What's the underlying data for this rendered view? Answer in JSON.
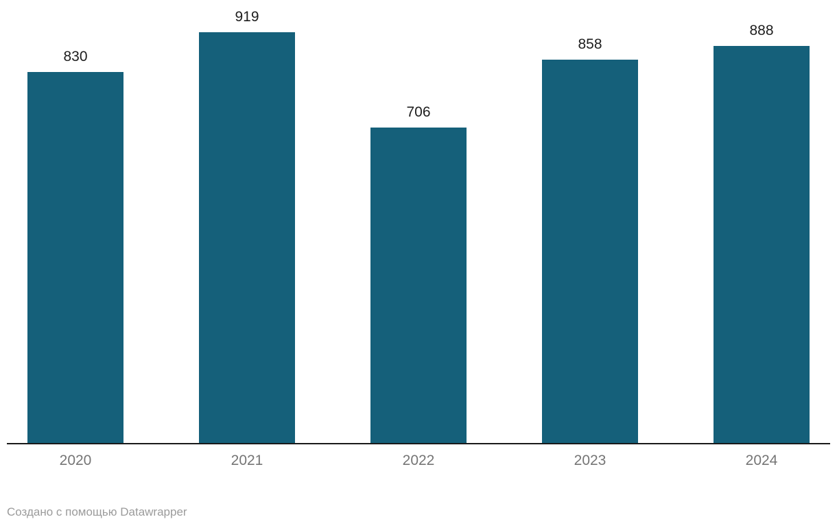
{
  "chart_data": {
    "type": "bar",
    "categories": [
      "2020",
      "2021",
      "2022",
      "2023",
      "2024"
    ],
    "values": [
      830,
      919,
      706,
      858,
      888
    ],
    "title": "",
    "xlabel": "",
    "ylabel": "",
    "ylim": [
      0,
      990
    ],
    "grid": false,
    "legend": false,
    "value_labels_shown": true
  },
  "footer": {
    "prefix": "Создано с помощью ",
    "link": "Datawrapper"
  },
  "colors": {
    "bar": "#15607a",
    "value_label": "#1d1d1d",
    "tick_label": "#757575",
    "axis_line": "#1a1a1a",
    "footer_text": "#9b9b9b",
    "background": "#ffffff"
  }
}
